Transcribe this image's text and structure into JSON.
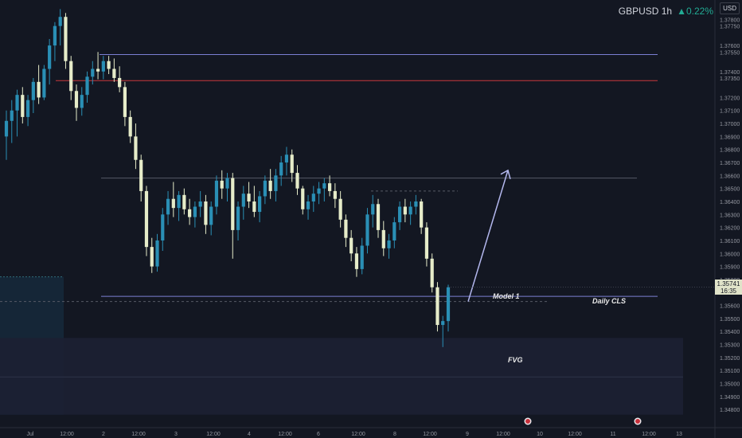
{
  "header": {
    "symbol": "GBPUSD 1h",
    "change": "▲0.22%",
    "currency": "USD"
  },
  "annotations": {
    "model": "Model 1",
    "daily_cls": "Daily CLS",
    "fvg": "FVG"
  },
  "last_price": {
    "price": "1.35741",
    "countdown": "16:35"
  },
  "colors": {
    "background": "#131722",
    "bull": "#2a8fb5",
    "bear": "#e6ecc9",
    "blue_line": "#7b7fd4",
    "red_line": "#c9393c",
    "arrow": "#b4b8ef",
    "fvg_zone": "#1b2033",
    "left_zone": "#16283a"
  },
  "chart_data": {
    "type": "candlestick",
    "symbol": "GBPUSD",
    "timeframe": "1h",
    "ylim": [
      1.3466,
      1.3795
    ],
    "y_ticks": [
      1.378,
      1.3775,
      1.376,
      1.3755,
      1.374,
      1.3735,
      1.372,
      1.371,
      1.37,
      1.369,
      1.368,
      1.367,
      1.366,
      1.365,
      1.364,
      1.363,
      1.362,
      1.361,
      1.36,
      1.359,
      1.358,
      1.356,
      1.355,
      1.354,
      1.353,
      1.352,
      1.351,
      1.35,
      1.349,
      1.348
    ],
    "y_tick_labels": [
      "1.37800",
      "1.37750",
      "1.37600",
      "1.37550",
      "1.37400",
      "1.37350",
      "1.37200",
      "1.37100",
      "1.37000",
      "1.36900",
      "1.36800",
      "1.36700",
      "1.36600",
      "1.36500",
      "1.36400",
      "1.36300",
      "1.36200",
      "1.36100",
      "1.36000",
      "1.35900",
      "1.35800",
      "1.35600",
      "1.35500",
      "1.35400",
      "1.35300",
      "1.35200",
      "1.35100",
      "1.35000",
      "1.34900",
      "1.34800"
    ],
    "x_tick_labels": [
      "Jul",
      "12:00",
      "2",
      "12:00",
      "3",
      "12:00",
      "4",
      "12:00",
      "6",
      "12:00",
      "8",
      "12:00",
      "9",
      "12:00",
      "10",
      "12:00",
      "11",
      "12:00",
      "13"
    ],
    "horizontal_levels": [
      {
        "price": 1.3753,
        "color": "blue",
        "style": "solid"
      },
      {
        "price": 1.3733,
        "color": "red",
        "style": "solid"
      },
      {
        "price": 1.3658,
        "color": "gray",
        "style": "solid"
      },
      {
        "price": 1.3648,
        "color": "gray",
        "style": "dashed"
      },
      {
        "price": 1.3567,
        "color": "blue",
        "style": "solid",
        "label": "Daily CLS"
      },
      {
        "price": 1.3563,
        "color": "gray",
        "style": "dashed"
      }
    ],
    "zones": [
      {
        "label": "FVG",
        "from": 1.3535,
        "to": 1.3476
      },
      {
        "label": "",
        "from": 1.3582,
        "to": 1.3476
      }
    ],
    "arrow": {
      "from_price": 1.3563,
      "to_price": 1.3664
    },
    "candles": [
      {
        "o": 1.369,
        "h": 1.371,
        "l": 1.3672,
        "c": 1.3702
      },
      {
        "o": 1.3702,
        "h": 1.3718,
        "l": 1.3685,
        "c": 1.371
      },
      {
        "o": 1.371,
        "h": 1.3726,
        "l": 1.369,
        "c": 1.3722
      },
      {
        "o": 1.3722,
        "h": 1.3728,
        "l": 1.37,
        "c": 1.3705
      },
      {
        "o": 1.3705,
        "h": 1.3722,
        "l": 1.3698,
        "c": 1.3718
      },
      {
        "o": 1.3718,
        "h": 1.3735,
        "l": 1.3708,
        "c": 1.3732
      },
      {
        "o": 1.3732,
        "h": 1.3745,
        "l": 1.3715,
        "c": 1.372
      },
      {
        "o": 1.372,
        "h": 1.3745,
        "l": 1.3718,
        "c": 1.3742
      },
      {
        "o": 1.3742,
        "h": 1.3765,
        "l": 1.373,
        "c": 1.376
      },
      {
        "o": 1.376,
        "h": 1.3778,
        "l": 1.3748,
        "c": 1.3775
      },
      {
        "o": 1.3775,
        "h": 1.3788,
        "l": 1.376,
        "c": 1.3782
      },
      {
        "o": 1.3782,
        "h": 1.3785,
        "l": 1.3742,
        "c": 1.3748
      },
      {
        "o": 1.3748,
        "h": 1.3752,
        "l": 1.3718,
        "c": 1.3725
      },
      {
        "o": 1.3725,
        "h": 1.373,
        "l": 1.3702,
        "c": 1.3712
      },
      {
        "o": 1.3712,
        "h": 1.3728,
        "l": 1.3706,
        "c": 1.3722
      },
      {
        "o": 1.3722,
        "h": 1.374,
        "l": 1.3716,
        "c": 1.3736
      },
      {
        "o": 1.3736,
        "h": 1.3748,
        "l": 1.373,
        "c": 1.3742
      },
      {
        "o": 1.3742,
        "h": 1.3755,
        "l": 1.3734,
        "c": 1.374
      },
      {
        "o": 1.374,
        "h": 1.3752,
        "l": 1.3734,
        "c": 1.3748
      },
      {
        "o": 1.3748,
        "h": 1.3752,
        "l": 1.3738,
        "c": 1.3742
      },
      {
        "o": 1.3742,
        "h": 1.375,
        "l": 1.3732,
        "c": 1.3735
      },
      {
        "o": 1.3735,
        "h": 1.3744,
        "l": 1.3724,
        "c": 1.3728
      },
      {
        "o": 1.3728,
        "h": 1.3732,
        "l": 1.3698,
        "c": 1.3705
      },
      {
        "o": 1.3705,
        "h": 1.371,
        "l": 1.3685,
        "c": 1.369
      },
      {
        "o": 1.369,
        "h": 1.37,
        "l": 1.3665,
        "c": 1.3672
      },
      {
        "o": 1.3672,
        "h": 1.3676,
        "l": 1.364,
        "c": 1.3648
      },
      {
        "o": 1.3648,
        "h": 1.3652,
        "l": 1.3598,
        "c": 1.3605
      },
      {
        "o": 1.3605,
        "h": 1.3612,
        "l": 1.3585,
        "c": 1.359
      },
      {
        "o": 1.359,
        "h": 1.3615,
        "l": 1.3586,
        "c": 1.361
      },
      {
        "o": 1.361,
        "h": 1.3635,
        "l": 1.3602,
        "c": 1.363
      },
      {
        "o": 1.363,
        "h": 1.3648,
        "l": 1.3622,
        "c": 1.3642
      },
      {
        "o": 1.3642,
        "h": 1.3655,
        "l": 1.3628,
        "c": 1.3635
      },
      {
        "o": 1.3635,
        "h": 1.3648,
        "l": 1.3625,
        "c": 1.3645
      },
      {
        "o": 1.3645,
        "h": 1.365,
        "l": 1.363,
        "c": 1.3634
      },
      {
        "o": 1.3634,
        "h": 1.3642,
        "l": 1.3622,
        "c": 1.3628
      },
      {
        "o": 1.3628,
        "h": 1.364,
        "l": 1.362,
        "c": 1.3636
      },
      {
        "o": 1.3636,
        "h": 1.3648,
        "l": 1.3628,
        "c": 1.364
      },
      {
        "o": 1.364,
        "h": 1.3645,
        "l": 1.3615,
        "c": 1.3622
      },
      {
        "o": 1.3622,
        "h": 1.364,
        "l": 1.3614,
        "c": 1.3636
      },
      {
        "o": 1.3636,
        "h": 1.366,
        "l": 1.363,
        "c": 1.3656
      },
      {
        "o": 1.3656,
        "h": 1.3664,
        "l": 1.3642,
        "c": 1.365
      },
      {
        "o": 1.365,
        "h": 1.3662,
        "l": 1.364,
        "c": 1.3658
      },
      {
        "o": 1.3658,
        "h": 1.3662,
        "l": 1.3596,
        "c": 1.3618
      },
      {
        "o": 1.3618,
        "h": 1.364,
        "l": 1.361,
        "c": 1.3636
      },
      {
        "o": 1.3636,
        "h": 1.3652,
        "l": 1.3626,
        "c": 1.3646
      },
      {
        "o": 1.3646,
        "h": 1.3655,
        "l": 1.3635,
        "c": 1.364
      },
      {
        "o": 1.364,
        "h": 1.3652,
        "l": 1.3628,
        "c": 1.3632
      },
      {
        "o": 1.3632,
        "h": 1.3648,
        "l": 1.3624,
        "c": 1.3644
      },
      {
        "o": 1.3644,
        "h": 1.366,
        "l": 1.3638,
        "c": 1.3656
      },
      {
        "o": 1.3656,
        "h": 1.3665,
        "l": 1.3642,
        "c": 1.3648
      },
      {
        "o": 1.3648,
        "h": 1.3665,
        "l": 1.364,
        "c": 1.366
      },
      {
        "o": 1.366,
        "h": 1.3675,
        "l": 1.3652,
        "c": 1.367
      },
      {
        "o": 1.367,
        "h": 1.3682,
        "l": 1.366,
        "c": 1.3676
      },
      {
        "o": 1.3676,
        "h": 1.368,
        "l": 1.3655,
        "c": 1.3662
      },
      {
        "o": 1.3662,
        "h": 1.3668,
        "l": 1.3645,
        "c": 1.365
      },
      {
        "o": 1.365,
        "h": 1.3652,
        "l": 1.363,
        "c": 1.3634
      },
      {
        "o": 1.3634,
        "h": 1.3645,
        "l": 1.3626,
        "c": 1.364
      },
      {
        "o": 1.364,
        "h": 1.3652,
        "l": 1.3632,
        "c": 1.3646
      },
      {
        "o": 1.3646,
        "h": 1.3655,
        "l": 1.3638,
        "c": 1.365
      },
      {
        "o": 1.365,
        "h": 1.3658,
        "l": 1.364,
        "c": 1.3654
      },
      {
        "o": 1.3654,
        "h": 1.366,
        "l": 1.3644,
        "c": 1.3648
      },
      {
        "o": 1.3648,
        "h": 1.3654,
        "l": 1.3635,
        "c": 1.3642
      },
      {
        "o": 1.3642,
        "h": 1.3648,
        "l": 1.362,
        "c": 1.3626
      },
      {
        "o": 1.3626,
        "h": 1.363,
        "l": 1.3605,
        "c": 1.3612
      },
      {
        "o": 1.3612,
        "h": 1.3618,
        "l": 1.3594,
        "c": 1.36
      },
      {
        "o": 1.36,
        "h": 1.3605,
        "l": 1.3582,
        "c": 1.3588
      },
      {
        "o": 1.3588,
        "h": 1.3612,
        "l": 1.3584,
        "c": 1.3606
      },
      {
        "o": 1.3606,
        "h": 1.3635,
        "l": 1.36,
        "c": 1.363
      },
      {
        "o": 1.363,
        "h": 1.3645,
        "l": 1.362,
        "c": 1.3638
      },
      {
        "o": 1.3638,
        "h": 1.3642,
        "l": 1.3612,
        "c": 1.3618
      },
      {
        "o": 1.3618,
        "h": 1.3625,
        "l": 1.3598,
        "c": 1.3604
      },
      {
        "o": 1.3604,
        "h": 1.3615,
        "l": 1.3596,
        "c": 1.361
      },
      {
        "o": 1.361,
        "h": 1.3628,
        "l": 1.3604,
        "c": 1.3624
      },
      {
        "o": 1.3624,
        "h": 1.364,
        "l": 1.3618,
        "c": 1.3636
      },
      {
        "o": 1.3636,
        "h": 1.3642,
        "l": 1.3624,
        "c": 1.363
      },
      {
        "o": 1.363,
        "h": 1.364,
        "l": 1.3622,
        "c": 1.3636
      },
      {
        "o": 1.3636,
        "h": 1.3645,
        "l": 1.363,
        "c": 1.364
      },
      {
        "o": 1.364,
        "h": 1.3642,
        "l": 1.3615,
        "c": 1.362
      },
      {
        "o": 1.362,
        "h": 1.3624,
        "l": 1.359,
        "c": 1.3596
      },
      {
        "o": 1.3596,
        "h": 1.36,
        "l": 1.357,
        "c": 1.3574
      },
      {
        "o": 1.3574,
        "h": 1.3578,
        "l": 1.354,
        "c": 1.3545
      },
      {
        "o": 1.3545,
        "h": 1.3552,
        "l": 1.3528,
        "c": 1.3548
      },
      {
        "o": 1.3548,
        "h": 1.3576,
        "l": 1.354,
        "c": 1.3574
      }
    ]
  }
}
